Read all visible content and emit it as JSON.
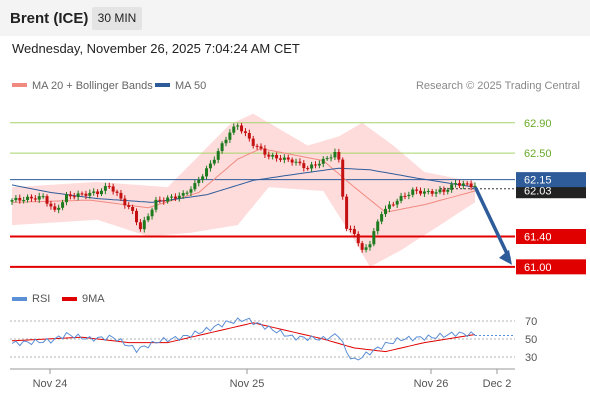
{
  "header": {
    "title": "Brent (ICE)",
    "timeframe": "30 MIN"
  },
  "datetime": "Wednesday, November 26, 2025 7:04:24 AM CET",
  "legend": {
    "ma20": {
      "label": "MA 20 + Bollinger Bands",
      "color": "#f08a80"
    },
    "ma50": {
      "label": "MA 50",
      "color": "#2e5c9a"
    }
  },
  "credit": "Research © 2025 Trading Central",
  "colors": {
    "up": "#1e7a1e",
    "down": "#c41010",
    "bb_fill": "#ffdcdc",
    "resistance": "#a6d46a",
    "support": "#e00000",
    "pivot": "#2e5c9a",
    "current": "#333333",
    "arrow": "#2e5c9a",
    "rsi": "#5b8fd6",
    "rsi_ma": "#e00000"
  },
  "levels": [
    {
      "value": 62.9,
      "label": "62.90",
      "type": "resistance"
    },
    {
      "value": 62.5,
      "label": "62.50",
      "type": "resistance"
    },
    {
      "value": 62.15,
      "label": "62.15",
      "type": "pivot"
    },
    {
      "value": 61.4,
      "label": "61.40",
      "type": "support"
    },
    {
      "value": 61.0,
      "label": "61.00",
      "type": "support"
    }
  ],
  "current_price": {
    "value": 62.03,
    "label": "62.03"
  },
  "forecast": {
    "from": 62.03,
    "to": 61.0
  },
  "rsi_legend": {
    "rsi": "RSI",
    "ma": "9MA"
  },
  "chart_data": {
    "type": "candlestick",
    "title": "Brent (ICE)",
    "timeframe": "30 MIN",
    "ylim": [
      60.8,
      63.2
    ],
    "x_ticks": [
      "Nov 24",
      "Nov 25",
      "Nov 26",
      "Dec 2"
    ],
    "close_keypoints": [
      {
        "i": 0,
        "v": 61.88
      },
      {
        "i": 8,
        "v": 61.92
      },
      {
        "i": 11,
        "v": 61.73
      },
      {
        "i": 14,
        "v": 61.93
      },
      {
        "i": 22,
        "v": 61.98
      },
      {
        "i": 25,
        "v": 62.07
      },
      {
        "i": 31,
        "v": 61.72
      },
      {
        "i": 33,
        "v": 61.5
      },
      {
        "i": 37,
        "v": 61.86
      },
      {
        "i": 44,
        "v": 61.95
      },
      {
        "i": 47,
        "v": 62.08
      },
      {
        "i": 51,
        "v": 62.35
      },
      {
        "i": 56,
        "v": 62.78
      },
      {
        "i": 58,
        "v": 62.87
      },
      {
        "i": 62,
        "v": 62.62
      },
      {
        "i": 66,
        "v": 62.46
      },
      {
        "i": 72,
        "v": 62.4
      },
      {
        "i": 76,
        "v": 62.3
      },
      {
        "i": 80,
        "v": 62.4
      },
      {
        "i": 83,
        "v": 62.5
      },
      {
        "i": 84,
        "v": 62.4
      },
      {
        "i": 85,
        "v": 61.95
      },
      {
        "i": 86,
        "v": 61.5
      },
      {
        "i": 88,
        "v": 61.45
      },
      {
        "i": 90,
        "v": 61.2
      },
      {
        "i": 92,
        "v": 61.32
      },
      {
        "i": 95,
        "v": 61.72
      },
      {
        "i": 99,
        "v": 61.88
      },
      {
        "i": 103,
        "v": 62.0
      },
      {
        "i": 107,
        "v": 61.98
      },
      {
        "i": 111,
        "v": 62.0
      },
      {
        "i": 114,
        "v": 62.1
      },
      {
        "i": 119,
        "v": 62.07
      }
    ],
    "ma20_keypoints": [
      {
        "i": 0,
        "v": 61.85
      },
      {
        "i": 20,
        "v": 61.88
      },
      {
        "i": 35,
        "v": 61.78
      },
      {
        "i": 48,
        "v": 61.98
      },
      {
        "i": 58,
        "v": 62.42
      },
      {
        "i": 64,
        "v": 62.56
      },
      {
        "i": 80,
        "v": 62.4
      },
      {
        "i": 88,
        "v": 62.05
      },
      {
        "i": 96,
        "v": 61.72
      },
      {
        "i": 106,
        "v": 61.82
      },
      {
        "i": 119,
        "v": 62.0
      }
    ],
    "bb_upper_keypoints": [
      {
        "i": 0,
        "v": 62.05
      },
      {
        "i": 22,
        "v": 62.12
      },
      {
        "i": 40,
        "v": 62.05
      },
      {
        "i": 56,
        "v": 62.88
      },
      {
        "i": 62,
        "v": 63.02
      },
      {
        "i": 76,
        "v": 62.6
      },
      {
        "i": 84,
        "v": 62.72
      },
      {
        "i": 90,
        "v": 62.9
      },
      {
        "i": 98,
        "v": 62.6
      },
      {
        "i": 106,
        "v": 62.25
      },
      {
        "i": 119,
        "v": 62.12
      }
    ],
    "bb_lower_keypoints": [
      {
        "i": 0,
        "v": 61.55
      },
      {
        "i": 22,
        "v": 61.62
      },
      {
        "i": 35,
        "v": 61.4
      },
      {
        "i": 46,
        "v": 61.45
      },
      {
        "i": 58,
        "v": 61.55
      },
      {
        "i": 66,
        "v": 62.05
      },
      {
        "i": 80,
        "v": 62.0
      },
      {
        "i": 88,
        "v": 61.35
      },
      {
        "i": 92,
        "v": 61.0
      },
      {
        "i": 100,
        "v": 61.22
      },
      {
        "i": 110,
        "v": 61.55
      },
      {
        "i": 119,
        "v": 61.85
      }
    ],
    "ma50_keypoints": [
      {
        "i": 0,
        "v": 62.08
      },
      {
        "i": 10,
        "v": 61.98
      },
      {
        "i": 22,
        "v": 61.9
      },
      {
        "i": 36,
        "v": 61.85
      },
      {
        "i": 50,
        "v": 61.95
      },
      {
        "i": 62,
        "v": 62.14
      },
      {
        "i": 74,
        "v": 62.23
      },
      {
        "i": 84,
        "v": 62.3
      },
      {
        "i": 92,
        "v": 62.28
      },
      {
        "i": 104,
        "v": 62.17
      },
      {
        "i": 119,
        "v": 62.05
      }
    ],
    "rsi": {
      "ylim": [
        20,
        80
      ],
      "ticks": [
        70,
        50,
        30
      ],
      "rsi_keypoints": [
        {
          "i": 0,
          "v": 45
        },
        {
          "i": 10,
          "v": 48
        },
        {
          "i": 14,
          "v": 55
        },
        {
          "i": 20,
          "v": 50
        },
        {
          "i": 26,
          "v": 52
        },
        {
          "i": 32,
          "v": 38
        },
        {
          "i": 38,
          "v": 48
        },
        {
          "i": 44,
          "v": 52
        },
        {
          "i": 50,
          "v": 60
        },
        {
          "i": 55,
          "v": 68
        },
        {
          "i": 60,
          "v": 72
        },
        {
          "i": 66,
          "v": 62
        },
        {
          "i": 72,
          "v": 52
        },
        {
          "i": 80,
          "v": 50
        },
        {
          "i": 84,
          "v": 55
        },
        {
          "i": 86,
          "v": 35
        },
        {
          "i": 88,
          "v": 26
        },
        {
          "i": 92,
          "v": 35
        },
        {
          "i": 96,
          "v": 44
        },
        {
          "i": 100,
          "v": 50
        },
        {
          "i": 108,
          "v": 52
        },
        {
          "i": 114,
          "v": 56
        },
        {
          "i": 119,
          "v": 55
        }
      ],
      "ma_keypoints": [
        {
          "i": 0,
          "v": 48
        },
        {
          "i": 18,
          "v": 52
        },
        {
          "i": 30,
          "v": 46
        },
        {
          "i": 40,
          "v": 46
        },
        {
          "i": 52,
          "v": 58
        },
        {
          "i": 62,
          "v": 68
        },
        {
          "i": 70,
          "v": 60
        },
        {
          "i": 80,
          "v": 50
        },
        {
          "i": 88,
          "v": 40
        },
        {
          "i": 96,
          "v": 36
        },
        {
          "i": 106,
          "v": 46
        },
        {
          "i": 119,
          "v": 55
        }
      ]
    }
  }
}
